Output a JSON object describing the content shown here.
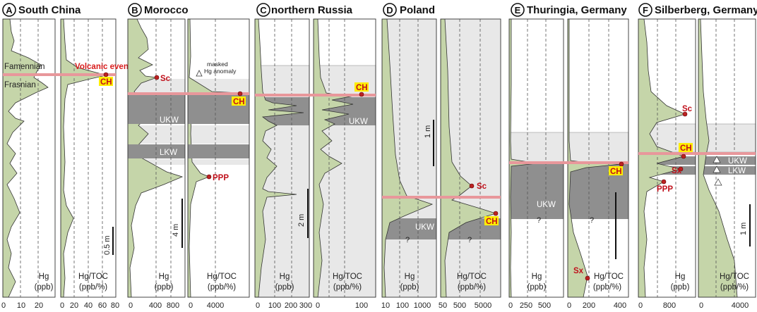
{
  "panels": [
    {
      "letter": "A",
      "title": "South China",
      "left": {
        "axis_label": "Hg",
        "unit": "(ppb)",
        "ticks": [
          "0",
          "10",
          "20"
        ]
      },
      "right": {
        "axis_label": "Hg/TOC",
        "unit": "(ppb/%)",
        "ticks": [
          "0",
          "20",
          "40",
          "60",
          "80"
        ]
      }
    },
    {
      "letter": "B",
      "title": "Morocco",
      "left": {
        "axis_label": "Hg",
        "unit": "(ppb)",
        "ticks": [
          "0",
          "400",
          "800"
        ]
      },
      "right": {
        "axis_label": "Hg/TOC",
        "unit": "(ppb/%)",
        "ticks": [
          "0",
          "4000"
        ]
      }
    },
    {
      "letter": "C",
      "title": "northern Russia",
      "left": {
        "axis_label": "Hg",
        "unit": "(ppb)",
        "ticks": [
          "0",
          "100",
          "200",
          "300"
        ]
      },
      "right": {
        "axis_label": "Hg/TOC",
        "unit": "(ppb/%)",
        "ticks": [
          "0",
          "100"
        ]
      }
    },
    {
      "letter": "D",
      "title": "Poland",
      "left": {
        "axis_label": "Hg",
        "unit": "(ppb)",
        "ticks": [
          "10",
          "100",
          "1000"
        ]
      },
      "right": {
        "axis_label": "Hg/TOC",
        "unit": "(ppb/%)",
        "ticks": [
          "50",
          "500",
          "5000"
        ]
      }
    },
    {
      "letter": "E",
      "title": "Thuringia, Germany",
      "left": {
        "axis_label": "Hg",
        "unit": "(ppb)",
        "ticks": [
          "0",
          "250",
          "500"
        ]
      },
      "right": {
        "axis_label": "Hg/TOC",
        "unit": "(ppb/%)",
        "ticks": [
          "0",
          "200",
          "400"
        ]
      }
    },
    {
      "letter": "F",
      "title": "Silberberg, Germany",
      "left": {
        "axis_label": "Hg",
        "unit": "(ppb)",
        "ticks": [
          "0",
          "800"
        ]
      },
      "right": {
        "axis_label": "Hg/TOC",
        "unit": "(ppb/%)",
        "ticks": [
          "0",
          "4000"
        ]
      }
    }
  ],
  "stage_labels": {
    "upper": "Famennian",
    "lower": "Frasnian"
  },
  "events": {
    "ch": "CH",
    "sc": "Sc",
    "ppp": "PPP",
    "sx": "Sx",
    "volcanic": "Volcanic event",
    "masked_1": "masked",
    "masked_2": "Hg anomaly"
  },
  "zones": {
    "ukw": "UKW",
    "lkw": "LKW",
    "unknown": "?"
  },
  "scale_bars": {
    "a": "0.5 m",
    "b": "4 m",
    "c": "2 m",
    "d": "1 m",
    "f": "1 m"
  },
  "colors": {
    "fill_green": "#c5d5a9",
    "shale_gray": "#8f8f8f",
    "band_gray": "#e8e8e8",
    "boundary_red": "#e8979b",
    "event_red": "#d81b1b",
    "badge_yellow": "#ffee00"
  }
}
